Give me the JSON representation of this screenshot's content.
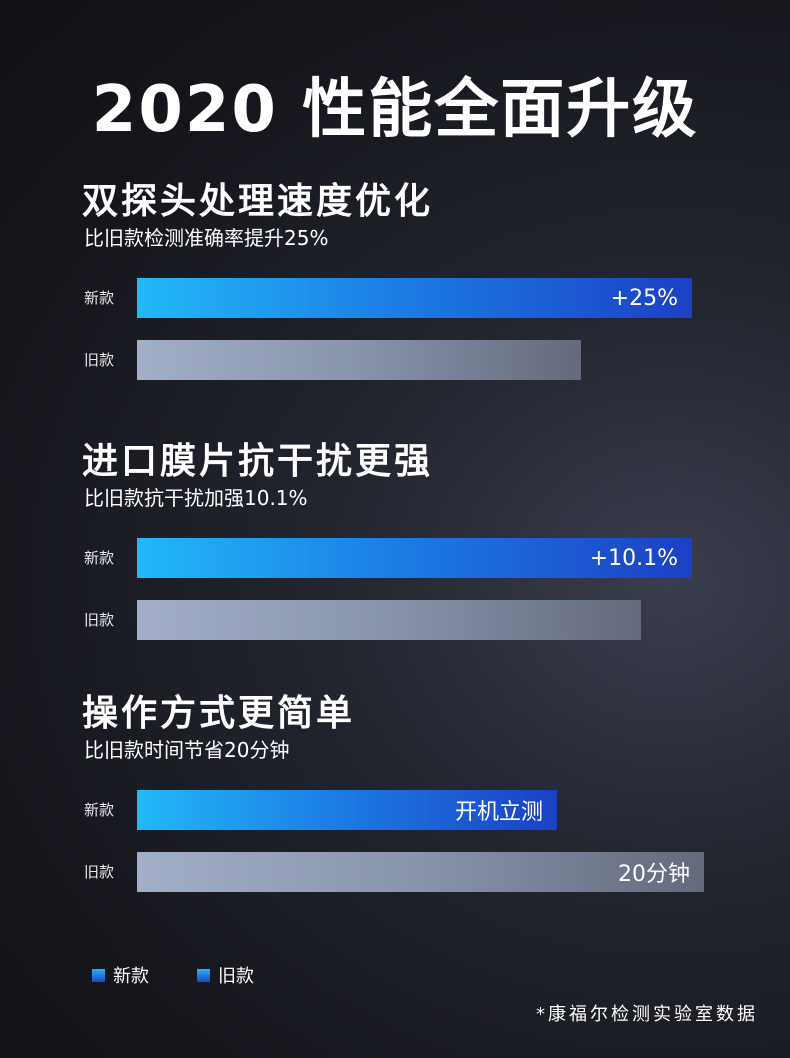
{
  "title": "2020 性能全面升级",
  "chart_data": [
    {
      "type": "bar",
      "title": "双探头处理速度优化",
      "subtitle": "比旧款检测准确率提升25%",
      "categories": [
        "新款",
        "旧款"
      ],
      "values": [
        125,
        100
      ],
      "bar_labels": [
        "+25%",
        ""
      ]
    },
    {
      "type": "bar",
      "title": "进口膜片抗干扰更强",
      "subtitle": "比旧款抗干扰加强10.1%",
      "categories": [
        "新款",
        "旧款"
      ],
      "values": [
        110.1,
        100
      ],
      "bar_labels": [
        "+10.1%",
        ""
      ]
    },
    {
      "type": "bar",
      "title": "操作方式更简单",
      "subtitle": "比旧款时间节省20分钟",
      "categories": [
        "新款",
        "旧款"
      ],
      "values": [
        0.74,
        1
      ],
      "bar_labels": [
        "开机立测",
        "20分钟"
      ]
    }
  ],
  "legend": [
    "新款",
    "旧款"
  ],
  "footnote": "*康福尔检测实验室数据",
  "colors": {
    "new_start": "#23b8f8",
    "new_end": "#1c40c4",
    "old_start": "#a3aec8",
    "old_end": "#646a7c"
  }
}
